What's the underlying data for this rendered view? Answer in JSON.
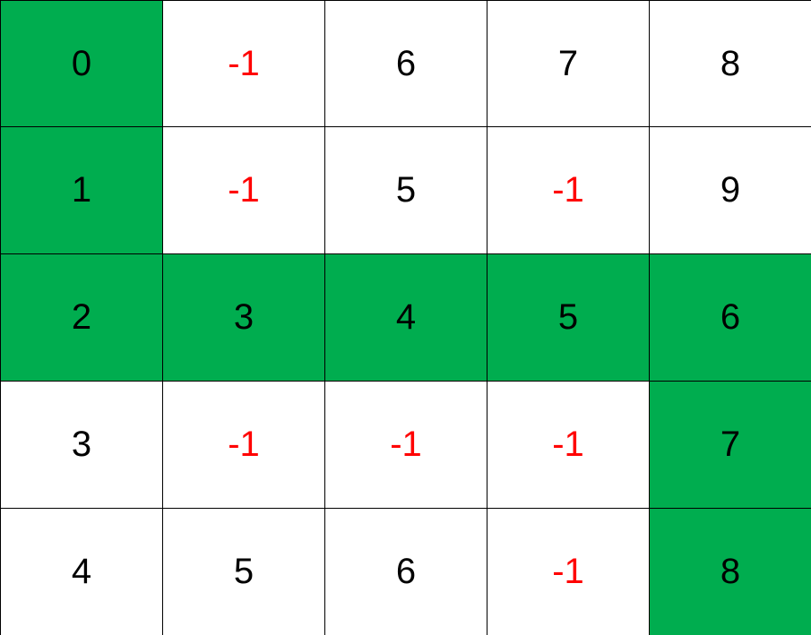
{
  "colors": {
    "path": "#00ad4f",
    "default_bg": "#ffffff",
    "value_text": "#000000",
    "blocked_text": "#ff0000",
    "grid_line": "#000000"
  },
  "grid": {
    "rows": [
      [
        "0",
        "-1",
        "6",
        "7",
        "8"
      ],
      [
        "1",
        "-1",
        "5",
        "-1",
        "9"
      ],
      [
        "2",
        "3",
        "4",
        "5",
        "6"
      ],
      [
        "3",
        "-1",
        "-1",
        "-1",
        "7"
      ],
      [
        "4",
        "5",
        "6",
        "-1",
        "8"
      ]
    ],
    "path_cells": [
      [
        0,
        0
      ],
      [
        1,
        0
      ],
      [
        2,
        0
      ],
      [
        2,
        1
      ],
      [
        2,
        2
      ],
      [
        2,
        3
      ],
      [
        2,
        4
      ],
      [
        3,
        4
      ],
      [
        4,
        4
      ]
    ]
  }
}
